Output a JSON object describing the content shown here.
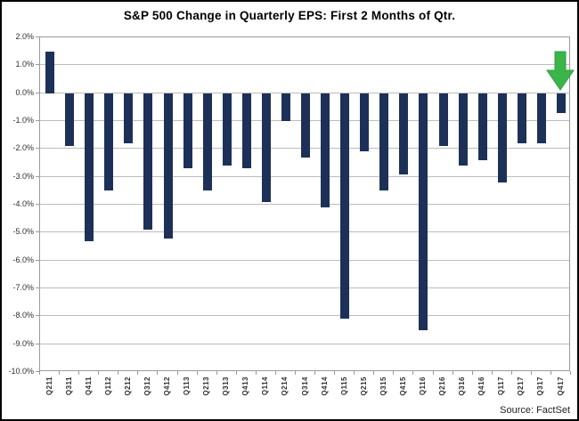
{
  "chart_data": {
    "type": "bar",
    "title": "S&P 500 Change in Quarterly EPS: First 2 Months of Qtr.",
    "categories": [
      "Q211",
      "Q311",
      "Q411",
      "Q112",
      "Q212",
      "Q312",
      "Q412",
      "Q113",
      "Q213",
      "Q313",
      "Q413",
      "Q114",
      "Q214",
      "Q314",
      "Q414",
      "Q115",
      "Q215",
      "Q315",
      "Q415",
      "Q116",
      "Q216",
      "Q316",
      "Q416",
      "Q117",
      "Q217",
      "Q317",
      "Q417"
    ],
    "values": [
      1.5,
      -1.9,
      -5.3,
      -3.5,
      -1.8,
      -4.9,
      -5.2,
      -2.7,
      -3.5,
      -2.6,
      -2.7,
      -3.9,
      -1.0,
      -2.3,
      -4.1,
      -8.1,
      -2.1,
      -3.5,
      -2.9,
      -8.5,
      -1.9,
      -2.6,
      -2.4,
      -3.2,
      -1.8,
      -1.8,
      -0.7
    ],
    "xlabel": "",
    "ylabel": "",
    "ylim": [
      -10,
      2
    ],
    "ytick_labels": [
      "2.0%",
      "1.0%",
      "0.0%",
      "-1.0%",
      "-2.0%",
      "-3.0%",
      "-4.0%",
      "-5.0%",
      "-6.0%",
      "-7.0%",
      "-8.0%",
      "-9.0%",
      "-10.0%"
    ],
    "grid": true,
    "legend_position": "none",
    "bar_color": "#1d3158",
    "gridline_color": "#bcbcbc",
    "axis_color": "#9a9a9a",
    "label_color": "#2e2e2e",
    "annotation": {
      "type": "down-arrow",
      "target_category": "Q417",
      "color": "#3ab54a",
      "border_color": "#2f9e3f"
    },
    "source": "Source: FactSet"
  }
}
